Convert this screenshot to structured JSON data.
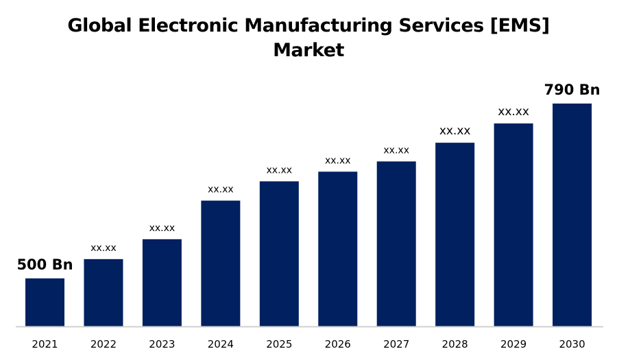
{
  "chart_data": {
    "type": "bar",
    "title_lines": [
      "Global Electronic Manufacturing Services [EMS]",
      "Market"
    ],
    "xlabel": "",
    "ylabel": "",
    "categories": [
      "2021",
      "2022",
      "2023",
      "2024",
      "2025",
      "2026",
      "2027",
      "2028",
      "2029",
      "2030"
    ],
    "values": [
      500,
      532,
      565,
      629,
      661,
      677,
      694,
      725,
      757,
      790
    ],
    "data_labels": [
      "500 Bn",
      "xx.xx",
      "xx.xx",
      "xx.xx",
      "xx.xx",
      "xx.xx",
      "xx.xx",
      "xx.xx",
      "xx.xx",
      "790 Bn"
    ],
    "ylim": [
      420,
      790
    ],
    "unit": "Bn",
    "grid": false,
    "legend": "none",
    "colors": {
      "bar": "#002060",
      "axis": "#d0d0d0",
      "text": "#000000"
    }
  }
}
